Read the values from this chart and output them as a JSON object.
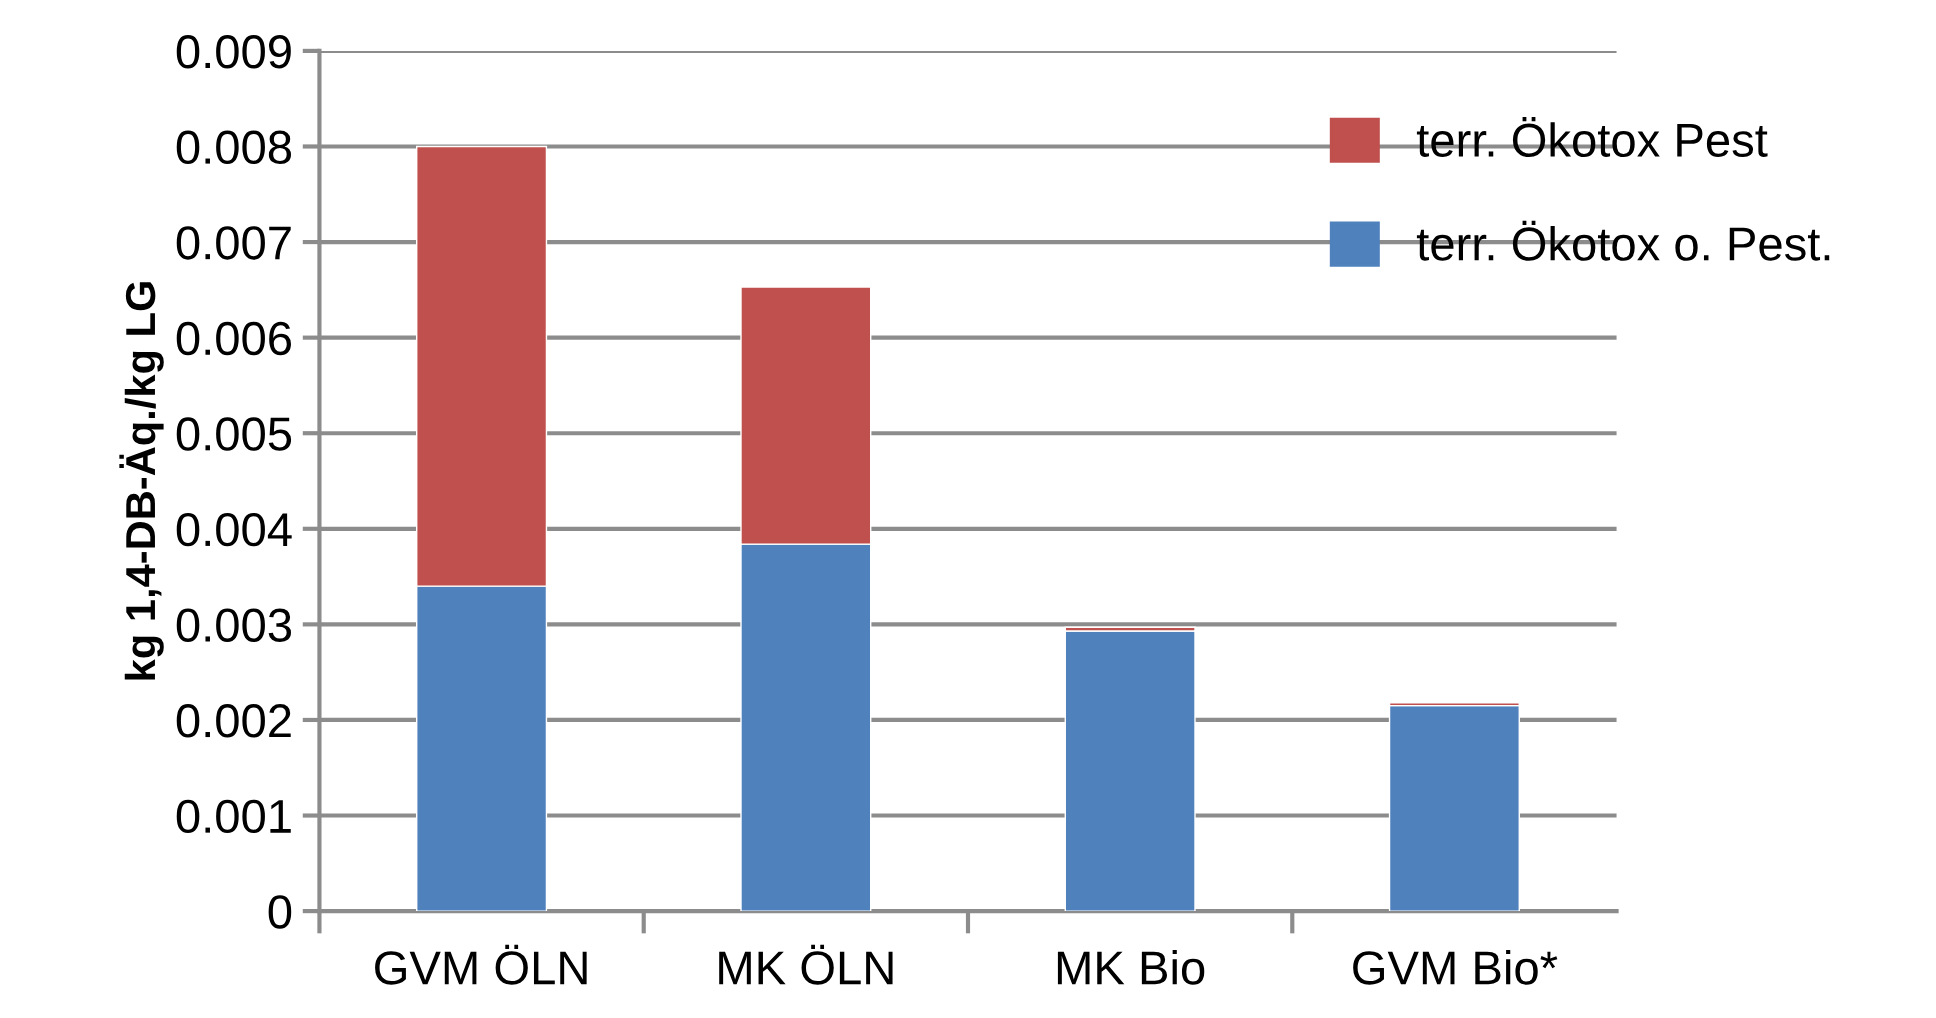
{
  "chart_data": {
    "type": "bar",
    "stacked": true,
    "ylabel": "kg 1,4-DB-Äq./kg LG",
    "categories": [
      "GVM ÖLN",
      "MK ÖLN",
      "MK Bio",
      "GVM Bio*"
    ],
    "series": [
      {
        "name": "terr. Ökotox o. Pest.",
        "color": "#4f81bd",
        "values": [
          0.0034,
          0.00384,
          0.00293,
          0.00215
        ]
      },
      {
        "name": "terr. Ökotox Pest",
        "color": "#c0504d",
        "values": [
          0.0046,
          0.00269,
          4e-05,
          3e-05
        ]
      }
    ],
    "ylim": [
      0,
      0.009
    ],
    "yticks": [
      0,
      0.001,
      0.002,
      0.003,
      0.004,
      0.005,
      0.006,
      0.007,
      0.008,
      0.009
    ],
    "grid": "y",
    "legend": "top right"
  }
}
